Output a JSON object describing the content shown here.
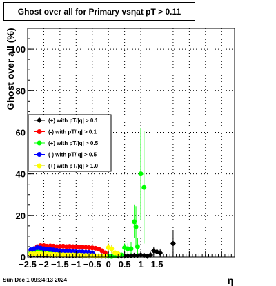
{
  "title": {
    "prefix": "Ghost over all for Primary vs",
    "symbol": "η",
    "suffix": "at pT > 0.11"
  },
  "timestamp": "Sun Dec  1 09:34:13 2024",
  "chart_data": {
    "type": "scatter",
    "xlabel": "η",
    "ylabel": "Ghost over all (%)",
    "xlim": [
      -2.5,
      3.9
    ],
    "ylim": [
      0,
      110
    ],
    "xticks": [
      -2.5,
      -2,
      -1.5,
      -1,
      -0.5,
      0,
      0.5,
      1,
      1.5
    ],
    "xtick_labels": [
      "−2.5",
      "−2",
      "−1.5",
      "−1",
      "−0.5",
      "0",
      "0.5",
      "1",
      "1.5"
    ],
    "yticks": [
      0,
      20,
      40,
      60,
      80,
      100
    ],
    "ytick_labels": [
      "0",
      "20",
      "40",
      "60",
      "80",
      "100"
    ],
    "grid": true,
    "legend_position": "center-left",
    "series": [
      {
        "name": "(+) with pT/|q| > 0.1",
        "color": "#000000",
        "marker": "diamond",
        "points": [
          [
            -2.4,
            0.8,
            0.3
          ],
          [
            -2.3,
            1.0,
            0.3
          ],
          [
            -2.2,
            0.9,
            0.3
          ],
          [
            -2.1,
            1.0,
            0.3
          ],
          [
            -2.0,
            0.8,
            0.3
          ],
          [
            -1.9,
            0.9,
            0.3
          ],
          [
            -1.8,
            0.8,
            0.3
          ],
          [
            -1.7,
            0.8,
            0.3
          ],
          [
            -1.6,
            0.8,
            0.3
          ],
          [
            -1.5,
            0.7,
            0.3
          ],
          [
            -1.4,
            0.7,
            0.3
          ],
          [
            -1.3,
            0.7,
            0.3
          ],
          [
            -1.2,
            0.6,
            0.3
          ],
          [
            -1.1,
            0.6,
            0.3
          ],
          [
            -1.0,
            0.6,
            0.3
          ],
          [
            -0.9,
            0.6,
            0.3
          ],
          [
            -0.8,
            0.5,
            0.3
          ],
          [
            -0.7,
            0.5,
            0.3
          ],
          [
            -0.6,
            0.5,
            0.3
          ],
          [
            -0.5,
            0.5,
            0.3
          ],
          [
            -0.4,
            0.5,
            0.3
          ],
          [
            -0.3,
            0.5,
            0.3
          ],
          [
            -0.2,
            0.5,
            0.3
          ],
          [
            -0.1,
            0.5,
            0.3
          ],
          [
            0.0,
            0.5,
            0.3
          ],
          [
            0.1,
            0.5,
            0.3
          ],
          [
            0.2,
            0.5,
            0.3
          ],
          [
            0.3,
            0.5,
            0.3
          ],
          [
            0.4,
            0.5,
            0.3
          ],
          [
            0.5,
            0.5,
            0.3
          ],
          [
            0.6,
            0.6,
            0.4
          ],
          [
            0.7,
            0.7,
            0.5
          ],
          [
            0.8,
            0.8,
            0.6
          ],
          [
            0.9,
            0.8,
            0.8
          ],
          [
            1.0,
            1.0,
            1.0
          ],
          [
            1.1,
            0.8,
            1.0
          ],
          [
            1.2,
            0.4,
            0.8
          ],
          [
            1.3,
            1.0,
            1.5
          ],
          [
            1.4,
            3.0,
            2.0
          ],
          [
            1.5,
            2.5,
            2.0
          ],
          [
            1.6,
            2.0,
            2.0
          ],
          [
            2.0,
            6.5,
            6.0
          ]
        ]
      },
      {
        "name": "(-) with pT/|q| > 0.1",
        "color": "#ff0000",
        "marker": "circle",
        "points": [
          [
            -2.4,
            3.0,
            0.6
          ],
          [
            -2.3,
            4.0,
            0.6
          ],
          [
            -2.2,
            5.0,
            0.6
          ],
          [
            -2.1,
            5.5,
            0.6
          ],
          [
            -2.0,
            5.5,
            0.6
          ],
          [
            -1.9,
            5.2,
            0.6
          ],
          [
            -1.8,
            5.3,
            0.6
          ],
          [
            -1.7,
            5.2,
            0.6
          ],
          [
            -1.6,
            5.0,
            0.6
          ],
          [
            -1.5,
            5.1,
            0.6
          ],
          [
            -1.4,
            5.2,
            0.6
          ],
          [
            -1.3,
            5.0,
            0.6
          ],
          [
            -1.2,
            5.1,
            0.6
          ],
          [
            -1.1,
            5.0,
            0.6
          ],
          [
            -1.0,
            4.9,
            0.6
          ],
          [
            -0.9,
            4.8,
            0.6
          ],
          [
            -0.8,
            4.7,
            0.6
          ],
          [
            -0.7,
            4.6,
            0.6
          ],
          [
            -0.6,
            4.5,
            0.6
          ],
          [
            -0.5,
            4.4,
            0.6
          ],
          [
            -0.4,
            4.2,
            0.6
          ],
          [
            -0.3,
            3.8,
            0.6
          ],
          [
            -0.2,
            3.0,
            0.6
          ],
          [
            -0.1,
            2.0,
            0.6
          ]
        ]
      },
      {
        "name": "(+) with pT/|q| > 0.5",
        "color": "#00ff00",
        "marker": "circle",
        "points": [
          [
            -2.4,
            2.0,
            0.6
          ],
          [
            -2.3,
            2.5,
            0.6
          ],
          [
            -2.2,
            2.5,
            0.6
          ],
          [
            -2.1,
            2.7,
            0.6
          ],
          [
            -2.0,
            2.5,
            0.6
          ],
          [
            -1.9,
            2.4,
            0.6
          ],
          [
            -1.8,
            2.3,
            0.6
          ],
          [
            -1.7,
            2.2,
            0.6
          ],
          [
            -1.6,
            2.1,
            0.6
          ],
          [
            -1.5,
            2.0,
            0.6
          ],
          [
            0.0,
            0.5,
            0.5
          ],
          [
            0.1,
            0.3,
            0.5
          ],
          [
            0.2,
            0.5,
            0.5
          ],
          [
            0.3,
            1.0,
            0.6
          ],
          [
            0.4,
            1.0,
            0.8
          ],
          [
            0.5,
            4.5,
            2.0
          ],
          [
            0.6,
            4.0,
            2.5
          ],
          [
            0.7,
            4.0,
            3.0
          ],
          [
            0.8,
            17.0,
            8.0
          ],
          [
            0.85,
            14.5,
            10.0
          ],
          [
            0.9,
            5.0,
            4.0
          ],
          [
            1.0,
            40.0,
            22.0
          ],
          [
            1.1,
            33.5,
            27.0
          ]
        ]
      },
      {
        "name": "(-) with pT/|q| > 0.5",
        "color": "#0000ff",
        "marker": "circle",
        "points": [
          [
            -2.4,
            3.5,
            0.6
          ],
          [
            -2.3,
            4.0,
            0.6
          ],
          [
            -2.2,
            4.5,
            0.6
          ],
          [
            -2.1,
            4.3,
            0.6
          ],
          [
            -2.0,
            4.0,
            0.6
          ],
          [
            -1.9,
            3.8,
            0.6
          ],
          [
            -1.8,
            3.6,
            0.6
          ],
          [
            -1.7,
            3.4,
            0.6
          ],
          [
            -1.6,
            3.2,
            0.6
          ],
          [
            -1.5,
            3.0,
            0.6
          ],
          [
            -1.4,
            2.9,
            0.6
          ],
          [
            -1.3,
            2.8,
            0.6
          ],
          [
            -1.2,
            2.7,
            0.6
          ],
          [
            -1.1,
            2.6,
            0.6
          ],
          [
            -1.0,
            2.5,
            0.6
          ],
          [
            -0.9,
            2.4,
            0.6
          ],
          [
            -0.8,
            2.4,
            0.6
          ],
          [
            -0.7,
            2.3,
            0.6
          ],
          [
            -0.6,
            2.2,
            0.6
          ],
          [
            -0.5,
            2.0,
            0.6
          ]
        ]
      },
      {
        "name": "(+) with pT/|q| > 1.0",
        "color": "#ffff00",
        "marker": "circle",
        "points": [
          [
            -2.4,
            1.5,
            0.5
          ],
          [
            -2.3,
            1.5,
            0.5
          ],
          [
            -2.2,
            1.7,
            0.5
          ],
          [
            -2.1,
            1.6,
            0.5
          ],
          [
            -2.0,
            1.5,
            0.5
          ],
          [
            -1.9,
            1.5,
            0.5
          ],
          [
            -1.8,
            1.3,
            0.5
          ],
          [
            -1.7,
            1.2,
            0.5
          ],
          [
            -1.6,
            1.2,
            0.5
          ],
          [
            -1.5,
            1.1,
            0.5
          ],
          [
            -1.4,
            1.1,
            0.5
          ],
          [
            -1.3,
            1.0,
            0.5
          ],
          [
            -1.2,
            1.0,
            0.5
          ],
          [
            -1.1,
            1.0,
            0.5
          ],
          [
            -1.0,
            0.9,
            0.5
          ],
          [
            -0.9,
            0.9,
            0.5
          ],
          [
            -0.8,
            0.8,
            0.5
          ],
          [
            -0.7,
            0.8,
            0.5
          ],
          [
            -0.6,
            0.7,
            0.5
          ],
          [
            -0.5,
            0.7,
            0.5
          ],
          [
            -0.4,
            0.6,
            0.5
          ],
          [
            -0.3,
            0.5,
            0.5
          ],
          [
            -0.2,
            0.5,
            0.5
          ],
          [
            -0.1,
            0.5,
            0.5
          ],
          [
            0.0,
            4.5,
            2.0
          ],
          [
            0.1,
            4.0,
            2.0
          ],
          [
            0.2,
            2.0,
            1.5
          ],
          [
            0.3,
            1.5,
            1.5
          ]
        ]
      }
    ]
  }
}
